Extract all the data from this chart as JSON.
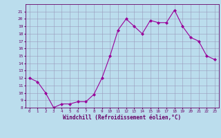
{
  "x": [
    0,
    1,
    2,
    3,
    4,
    5,
    6,
    7,
    8,
    9,
    10,
    11,
    12,
    13,
    14,
    15,
    16,
    17,
    18,
    19,
    20,
    21,
    22,
    23
  ],
  "y": [
    12,
    11.5,
    10,
    8,
    8.5,
    8.5,
    8.8,
    8.8,
    9.8,
    12,
    15,
    18.5,
    20,
    19,
    18,
    19.8,
    19.5,
    19.5,
    21.2,
    19,
    17.5,
    17,
    15,
    14.5
  ],
  "line_color": "#990099",
  "marker_color": "#990099",
  "bg_color": "#bbdded",
  "grid_color": "#9999bb",
  "title_color": "#660066",
  "tick_color": "#660066",
  "xlabel": "Windchill (Refroidissement éolien,°C)",
  "ylim": [
    8,
    22
  ],
  "xlim": [
    -0.5,
    23.5
  ],
  "yticks": [
    8,
    9,
    10,
    11,
    12,
    13,
    14,
    15,
    16,
    17,
    18,
    19,
    20,
    21
  ],
  "xticks": [
    0,
    1,
    2,
    3,
    4,
    5,
    6,
    7,
    8,
    9,
    10,
    11,
    12,
    13,
    14,
    15,
    16,
    17,
    18,
    19,
    20,
    21,
    22,
    23
  ]
}
